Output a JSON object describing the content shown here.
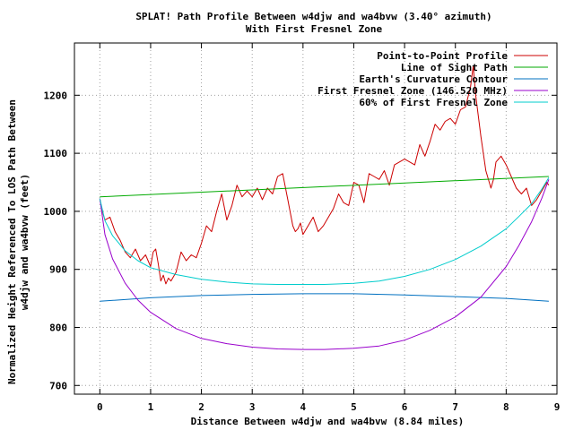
{
  "chart_data": {
    "type": "line",
    "title": "SPLAT! Path Profile Between w4djw and wa4bvw (3.40° azimuth)",
    "subtitle": "With First Fresnel Zone",
    "xlabel": "Distance Between w4djw and wa4bvw (8.84 miles)",
    "ylabel_line1": "Normalized Height Referenced To LOS Path Between",
    "ylabel_line2": "w4djw and wa4bvw (feet)",
    "xlim": [
      -0.5,
      9
    ],
    "ylim": [
      685,
      1290
    ],
    "xticks": [
      0,
      1,
      2,
      3,
      4,
      5,
      6,
      7,
      8,
      9
    ],
    "yticks": [
      700,
      800,
      900,
      1000,
      1100,
      1200
    ],
    "grid": true,
    "legend_position": "top-right",
    "series": [
      {
        "name": "Point-to-Point Profile",
        "color": "#cc0000",
        "x": [
          0,
          0.05,
          0.1,
          0.2,
          0.3,
          0.4,
          0.5,
          0.6,
          0.7,
          0.8,
          0.9,
          1.0,
          1.05,
          1.1,
          1.15,
          1.2,
          1.25,
          1.3,
          1.35,
          1.4,
          1.5,
          1.6,
          1.7,
          1.8,
          1.9,
          2.0,
          2.1,
          2.2,
          2.3,
          2.4,
          2.5,
          2.6,
          2.7,
          2.8,
          2.9,
          3.0,
          3.1,
          3.2,
          3.3,
          3.4,
          3.5,
          3.6,
          3.7,
          3.8,
          3.85,
          3.9,
          3.95,
          4.0,
          4.1,
          4.2,
          4.3,
          4.4,
          4.5,
          4.6,
          4.7,
          4.8,
          4.9,
          5.0,
          5.1,
          5.2,
          5.3,
          5.4,
          5.5,
          5.6,
          5.7,
          5.8,
          5.9,
          6.0,
          6.1,
          6.2,
          6.3,
          6.4,
          6.5,
          6.6,
          6.7,
          6.8,
          6.9,
          7.0,
          7.1,
          7.2,
          7.3,
          7.35,
          7.4,
          7.5,
          7.6,
          7.7,
          7.75,
          7.8,
          7.9,
          8.0,
          8.1,
          8.2,
          8.3,
          8.4,
          8.5,
          8.6,
          8.7,
          8.8,
          8.84
        ],
        "values": [
          1022,
          1000,
          985,
          990,
          965,
          950,
          930,
          920,
          935,
          915,
          925,
          905,
          930,
          935,
          910,
          880,
          890,
          875,
          885,
          880,
          895,
          930,
          915,
          925,
          920,
          945,
          975,
          965,
          1000,
          1030,
          985,
          1010,
          1045,
          1025,
          1035,
          1025,
          1040,
          1020,
          1040,
          1030,
          1060,
          1065,
          1020,
          975,
          965,
          970,
          980,
          960,
          975,
          990,
          965,
          975,
          990,
          1005,
          1030,
          1015,
          1010,
          1050,
          1045,
          1015,
          1065,
          1060,
          1055,
          1070,
          1045,
          1080,
          1085,
          1090,
          1085,
          1080,
          1115,
          1095,
          1120,
          1150,
          1140,
          1155,
          1160,
          1150,
          1175,
          1180,
          1215,
          1250,
          1200,
          1130,
          1070,
          1040,
          1055,
          1085,
          1095,
          1080,
          1060,
          1040,
          1030,
          1040,
          1010,
          1020,
          1035,
          1050,
          1045
        ]
      },
      {
        "name": "Line of Sight Path",
        "color": "#00aa00",
        "x": [
          0,
          8.84
        ],
        "values": [
          1025,
          1060
        ]
      },
      {
        "name": "Earth's Curvature Contour",
        "color": "#0070c0",
        "x": [
          0,
          1,
          2,
          3,
          4,
          4.42,
          5,
          6,
          7,
          8,
          8.84
        ],
        "values": [
          845,
          851,
          855,
          857,
          858,
          858,
          858,
          856,
          853,
          850,
          845
        ]
      },
      {
        "name": "First Fresnel Zone (146.520 MHz)",
        "color": "#9900cc",
        "x": [
          0,
          0.1,
          0.25,
          0.5,
          0.75,
          1,
          1.5,
          2,
          2.5,
          3,
          3.5,
          4,
          4.42,
          5,
          5.5,
          6,
          6.5,
          7,
          7.5,
          8,
          8.25,
          8.5,
          8.7,
          8.84
        ],
        "values": [
          1022,
          960,
          918,
          876,
          847,
          826,
          798,
          781,
          772,
          766,
          763,
          762,
          762,
          764,
          768,
          778,
          795,
          818,
          852,
          905,
          941,
          982,
          1022,
          1055
        ]
      },
      {
        "name": "60% of First Fresnel Zone",
        "color": "#00cccc",
        "x": [
          0,
          0.1,
          0.25,
          0.5,
          0.75,
          1,
          1.5,
          2,
          2.5,
          3,
          3.5,
          4,
          4.42,
          5,
          5.5,
          6,
          6.5,
          7,
          7.5,
          8,
          8.25,
          8.5,
          8.7,
          8.84
        ],
        "values": [
          1022,
          984,
          958,
          932,
          915,
          903,
          891,
          883,
          878,
          875,
          874,
          874,
          874,
          876,
          880,
          888,
          900,
          917,
          940,
          970,
          991,
          1013,
          1038,
          1058
        ]
      }
    ]
  }
}
